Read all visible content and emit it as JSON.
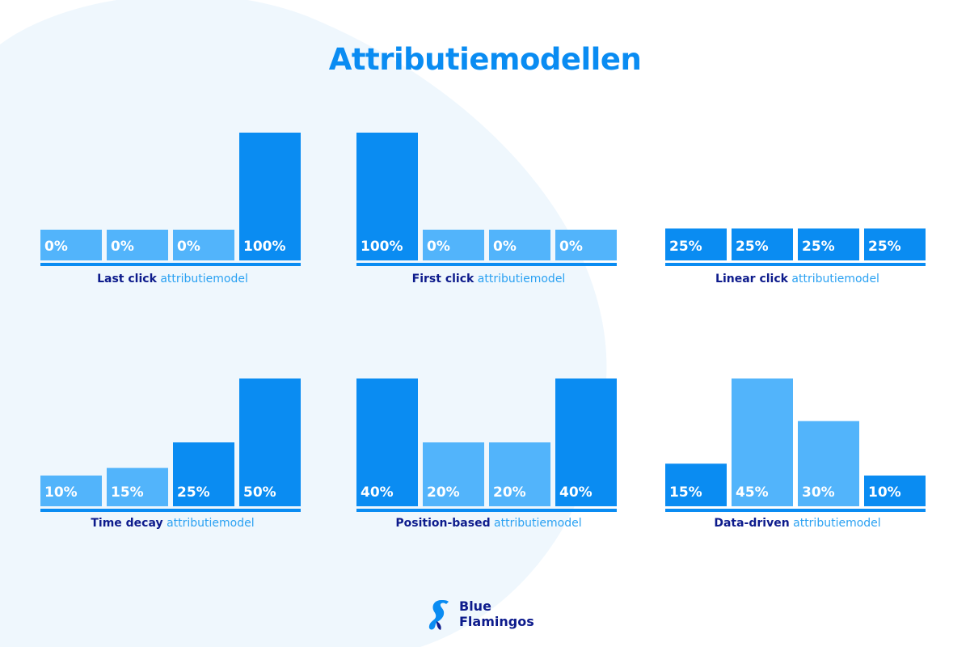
{
  "title": "Attributiemodellen",
  "colors": {
    "dark_bar": "#0a8cf2",
    "light_bar": "#52b4fb",
    "baseline": "#0a8cf2",
    "title": "#0a8cf2",
    "caption_bold": "#0d1b8c",
    "caption_light": "#2aa1f2",
    "background_blob": "#eef7fd"
  },
  "logo": {
    "line1": "Blue",
    "line2": "Flamingos"
  },
  "chart_data": [
    {
      "type": "bar",
      "caption_bold": "Last click",
      "caption_rest": " attributiemodel",
      "categories": [
        "1",
        "2",
        "3",
        "4"
      ],
      "values": [
        0,
        0,
        0,
        100
      ],
      "labels": [
        "0%",
        "0%",
        "0%",
        "100%"
      ],
      "tones": [
        "light",
        "light",
        "light",
        "dark"
      ],
      "ylim": [
        0,
        100
      ]
    },
    {
      "type": "bar",
      "caption_bold": "First click",
      "caption_rest": " attributiemodel",
      "categories": [
        "1",
        "2",
        "3",
        "4"
      ],
      "values": [
        100,
        0,
        0,
        0
      ],
      "labels": [
        "100%",
        "0%",
        "0%",
        "0%"
      ],
      "tones": [
        "dark",
        "light",
        "light",
        "light"
      ],
      "ylim": [
        0,
        100
      ]
    },
    {
      "type": "bar",
      "caption_bold": "Linear click",
      "caption_rest": " attributiemodel",
      "categories": [
        "1",
        "2",
        "3",
        "4"
      ],
      "values": [
        25,
        25,
        25,
        25
      ],
      "labels": [
        "25%",
        "25%",
        "25%",
        "25%"
      ],
      "tones": [
        "dark",
        "dark",
        "dark",
        "dark"
      ],
      "ylim": [
        0,
        100
      ]
    },
    {
      "type": "bar",
      "caption_bold": "Time decay",
      "caption_rest": " attributiemodel",
      "categories": [
        "1",
        "2",
        "3",
        "4"
      ],
      "values": [
        10,
        15,
        25,
        50
      ],
      "labels": [
        "10%",
        "15%",
        "25%",
        "50%"
      ],
      "tones": [
        "light",
        "light",
        "dark",
        "dark"
      ],
      "ylim": [
        0,
        50
      ]
    },
    {
      "type": "bar",
      "caption_bold": "Position-based",
      "caption_rest": " attributiemodel",
      "categories": [
        "1",
        "2",
        "3",
        "4"
      ],
      "values": [
        40,
        20,
        20,
        40
      ],
      "labels": [
        "40%",
        "20%",
        "20%",
        "40%"
      ],
      "tones": [
        "dark",
        "light",
        "light",
        "dark"
      ],
      "ylim": [
        0,
        40
      ]
    },
    {
      "type": "bar",
      "caption_bold": "Data-driven",
      "caption_rest": " attributiemodel",
      "categories": [
        "1",
        "2",
        "3",
        "4"
      ],
      "values": [
        15,
        45,
        30,
        10
      ],
      "labels": [
        "15%",
        "45%",
        "30%",
        "10%"
      ],
      "tones": [
        "dark",
        "light",
        "light",
        "dark"
      ],
      "ylim": [
        0,
        45
      ]
    }
  ]
}
